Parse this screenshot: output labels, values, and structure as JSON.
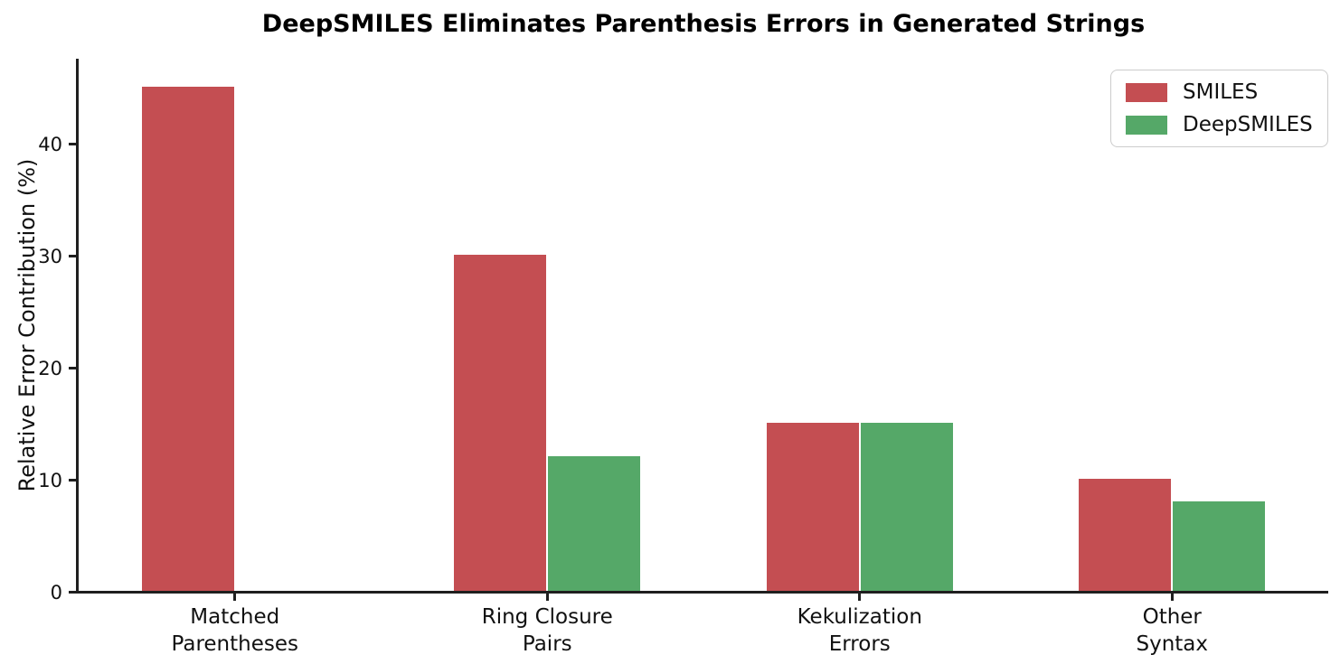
{
  "title": "DeepSMILES Eliminates Parenthesis Errors in Generated Strings",
  "chart_data": {
    "type": "bar",
    "title": "DeepSMILES Eliminates Parenthesis Errors in Generated Strings",
    "xlabel": "",
    "ylabel": "Relative Error Contribution (%)",
    "categories": [
      "Matched\nParentheses",
      "Ring Closure\nPairs",
      "Kekulization\nErrors",
      "Other\nSyntax"
    ],
    "series": [
      {
        "name": "SMILES",
        "color": "#C44E52",
        "values": [
          45,
          30,
          15,
          10
        ]
      },
      {
        "name": "DeepSMILES",
        "color": "#55A868",
        "values": [
          0,
          12,
          15,
          8
        ]
      }
    ],
    "yticks": [
      0,
      10,
      20,
      30,
      40
    ],
    "ylim": [
      0,
      47.5
    ],
    "grid": "off",
    "legend_position": "upper right",
    "axis_color": "#1f1f1f"
  }
}
